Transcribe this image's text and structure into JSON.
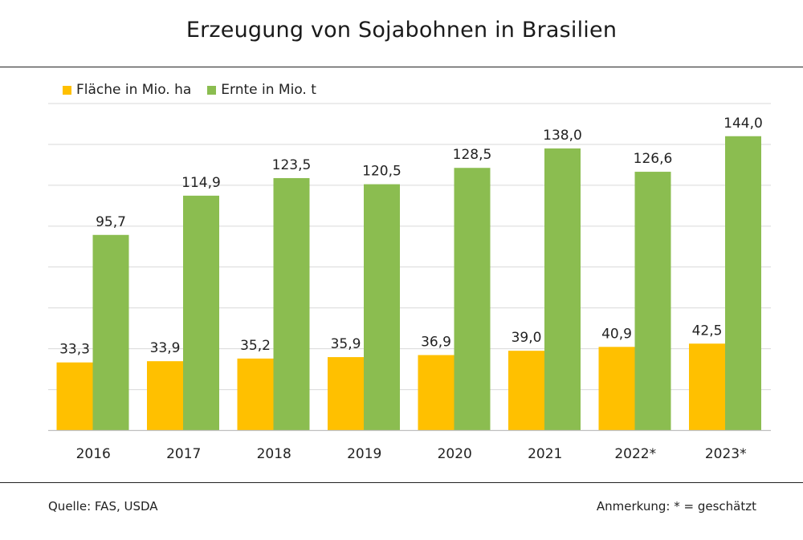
{
  "chart_data": {
    "type": "bar",
    "title": "Erzeugung von Sojabohnen in Brasilien",
    "categories": [
      "2016",
      "2017",
      "2018",
      "2019",
      "2020",
      "2021",
      "2022*",
      "2023*"
    ],
    "series": [
      {
        "name": "Fläche in Mio. ha",
        "color": "#FFC000",
        "values": [
          33.3,
          33.9,
          35.2,
          35.9,
          36.9,
          39.0,
          40.9,
          42.5
        ],
        "labels": [
          "33,3",
          "33,9",
          "35,2",
          "35,9",
          "36,9",
          "39,0",
          "40,9",
          "42,5"
        ]
      },
      {
        "name": "Ernte in Mio. t",
        "color": "#8BBD50",
        "values": [
          95.7,
          114.9,
          123.5,
          120.5,
          128.5,
          138.0,
          126.6,
          144.0
        ],
        "labels": [
          "95,7",
          "114,9",
          "123,5",
          "120,5",
          "128,5",
          "138,0",
          "126,6",
          "144,0"
        ]
      }
    ],
    "ylim": [
      0,
      160
    ],
    "gridlines": true,
    "legend_position": "top-left"
  },
  "footer": {
    "source": "Quelle:  FAS, USDA",
    "note": "Anmerkung: * = geschätzt"
  }
}
